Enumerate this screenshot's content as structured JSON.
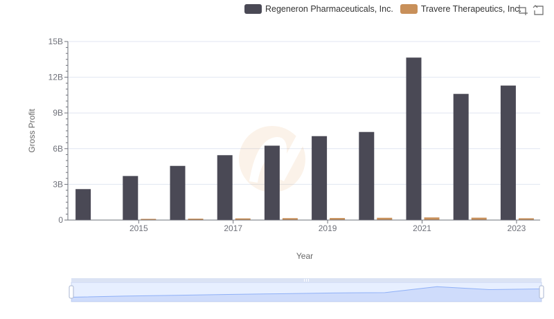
{
  "legend": {
    "items": [
      {
        "label": "Regeneron Pharmaceuticals, Inc.",
        "color": "#4a4955"
      },
      {
        "label": "Travere Therapeutics, Inc.",
        "color": "#c8905a"
      }
    ]
  },
  "toolbox": {
    "zoom_icon": "zoom-icon",
    "restore_icon": "restore-icon"
  },
  "chart_data": {
    "type": "bar",
    "title": "",
    "xlabel": "Year",
    "ylabel": "Gross Profit",
    "categories": [
      "2014",
      "2015",
      "2016",
      "2017",
      "2018",
      "2019",
      "2020",
      "2021",
      "2022",
      "2023"
    ],
    "x_tick_labels": [
      "2015",
      "2017",
      "2019",
      "2021",
      "2023"
    ],
    "y_tick_labels": [
      "0",
      "3B",
      "6B",
      "9B",
      "12B",
      "15B"
    ],
    "ylim": [
      0,
      15000000000
    ],
    "series": [
      {
        "name": "Regeneron Pharmaceuticals, Inc.",
        "color": "#4a4955",
        "values": [
          2600000000,
          3700000000,
          4550000000,
          5450000000,
          6250000000,
          7050000000,
          7400000000,
          13650000000,
          10600000000,
          11300000000
        ]
      },
      {
        "name": "Travere Therapeutics, Inc.",
        "color": "#c8905a",
        "values": [
          0,
          100000000,
          120000000,
          140000000,
          160000000,
          170000000,
          190000000,
          220000000,
          200000000,
          150000000
        ]
      }
    ],
    "grid": true,
    "legend_position": "top-right",
    "datazoom": {
      "start": 0,
      "end": 100
    }
  }
}
